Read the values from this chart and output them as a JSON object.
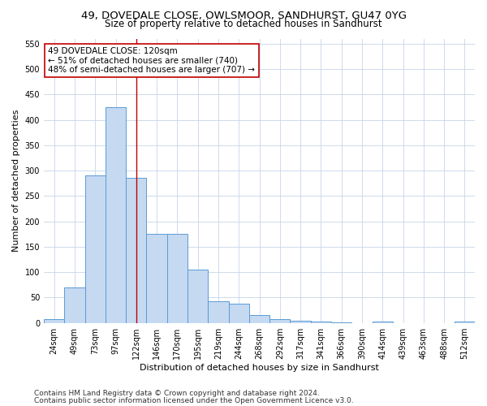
{
  "title1": "49, DOVEDALE CLOSE, OWLSMOOR, SANDHURST, GU47 0YG",
  "title2": "Size of property relative to detached houses in Sandhurst",
  "xlabel": "Distribution of detached houses by size in Sandhurst",
  "ylabel": "Number of detached properties",
  "categories": [
    "24sqm",
    "49sqm",
    "73sqm",
    "97sqm",
    "122sqm",
    "146sqm",
    "170sqm",
    "195sqm",
    "219sqm",
    "244sqm",
    "268sqm",
    "292sqm",
    "317sqm",
    "341sqm",
    "366sqm",
    "390sqm",
    "414sqm",
    "439sqm",
    "463sqm",
    "488sqm",
    "512sqm"
  ],
  "values": [
    8,
    70,
    290,
    425,
    285,
    175,
    175,
    105,
    43,
    38,
    15,
    8,
    5,
    2,
    1,
    0,
    2,
    0,
    0,
    0,
    2
  ],
  "bar_color": "#c5d9f1",
  "bar_edge_color": "#5b9bd5",
  "vline_x": 4,
  "vline_color": "#c00000",
  "annotation_line1": "49 DOVEDALE CLOSE: 120sqm",
  "annotation_line2": "← 51% of detached houses are smaller (740)",
  "annotation_line3": "48% of semi-detached houses are larger (707) →",
  "annotation_box_color": "#ffffff",
  "annotation_box_edge": "#c00000",
  "ylim": [
    0,
    560
  ],
  "yticks": [
    0,
    50,
    100,
    150,
    200,
    250,
    300,
    350,
    400,
    450,
    500,
    550
  ],
  "footer1": "Contains HM Land Registry data © Crown copyright and database right 2024.",
  "footer2": "Contains public sector information licensed under the Open Government Licence v3.0.",
  "title1_fontsize": 9.5,
  "title2_fontsize": 8.5,
  "axis_label_fontsize": 8,
  "tick_fontsize": 7,
  "annotation_fontsize": 7.5,
  "footer_fontsize": 6.5,
  "background_color": "#ffffff",
  "grid_color": "#c8d4e8"
}
